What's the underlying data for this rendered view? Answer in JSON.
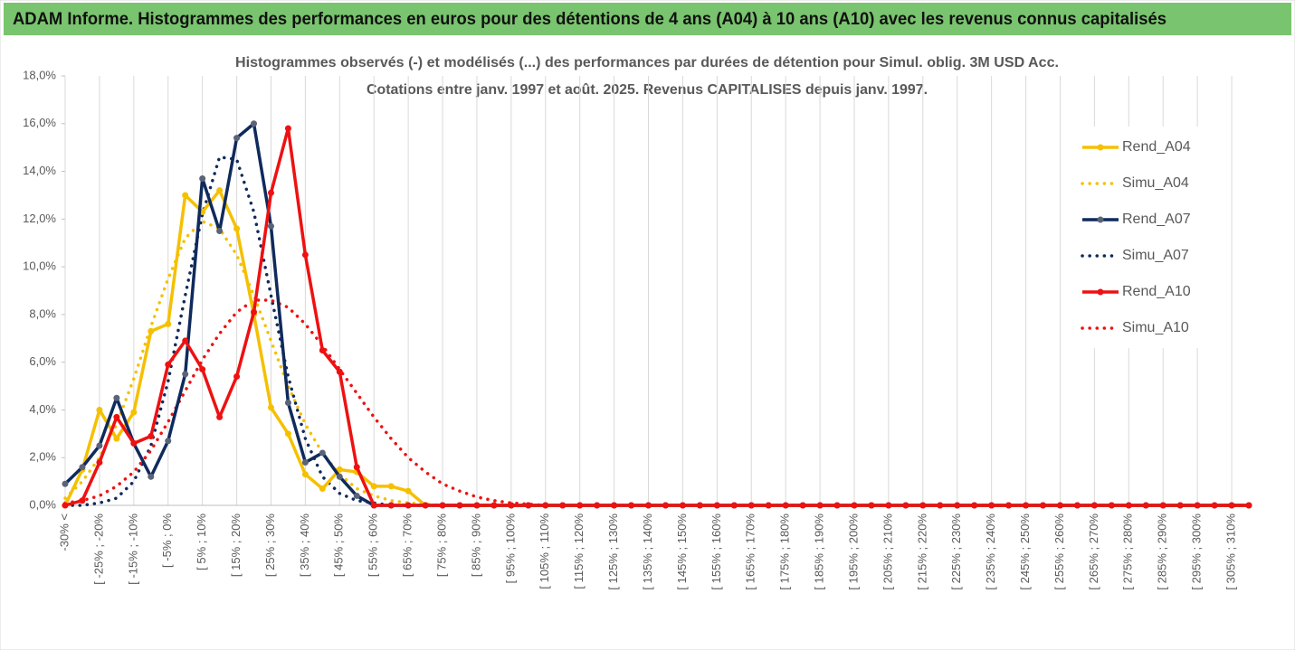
{
  "header": {
    "title": "ADAM Informe. Histogrammes des performances en euros pour des détentions de 4 ans (A04) à 10 ans (A10) avec les revenus connus capitalisés"
  },
  "chart_data": {
    "type": "line",
    "subtitle": [
      "Histogrammes observés (-) et modélisés (...) des performances par durées de détention pour Simul. oblig. 3M USD Acc.",
      "Cotations entre janv. 1997 et août. 2025. Revenus CAPITALISES depuis janv. 1997."
    ],
    "categories": [
      "-30% <",
      null,
      "[ -25% ; -20%",
      null,
      "[ -15% ; -10%",
      null,
      "[ -5% ; 0%",
      null,
      "[ 5% ; 10%",
      null,
      "[ 15% ; 20%",
      null,
      "[ 25% ; 30%",
      null,
      "[ 35% ; 40%",
      null,
      "[ 45% ; 50%",
      null,
      "[ 55% ; 60%",
      null,
      "[ 65% ; 70%",
      null,
      "[ 75% ; 80%",
      null,
      "[ 85% ; 90%",
      null,
      "[ 95% ; 100%",
      null,
      "[ 105% ; 110%",
      null,
      "[ 115% ; 120%",
      null,
      "[ 125% ; 130%",
      null,
      "[ 135% ; 140%",
      null,
      "[ 145% ; 150%",
      null,
      "[ 155% ; 160%",
      null,
      "[ 165% ; 170%",
      null,
      "[ 175% ; 180%",
      null,
      "[ 185% ; 190%",
      null,
      "[ 195% ; 200%",
      null,
      "[ 205% ; 210%",
      null,
      "[ 215% ; 220%",
      null,
      "[ 225% ; 230%",
      null,
      "[ 235% ; 240%",
      null,
      "[ 245% ; 250%",
      null,
      "[ 255% ; 260%",
      null,
      "[ 265% ; 270%",
      null,
      "[ 275% ; 280%",
      null,
      "[ 285% ; 290%",
      null,
      "[ 295% ; 300%",
      null,
      "[ 305% ; 310%",
      null
    ],
    "ylim": [
      0,
      18
    ],
    "yticks": [
      {
        "value": 0,
        "label": "0,0%"
      },
      {
        "value": 2,
        "label": "2,0%"
      },
      {
        "value": 4,
        "label": "4,0%"
      },
      {
        "value": 6,
        "label": "6,0%"
      },
      {
        "value": 8,
        "label": "8,0%"
      },
      {
        "value": 10,
        "label": "10,0%"
      },
      {
        "value": 12,
        "label": "12,0%"
      },
      {
        "value": 14,
        "label": "14,0%"
      },
      {
        "value": 16,
        "label": "16,0%"
      },
      {
        "value": 18,
        "label": "18,0%"
      }
    ],
    "grid": true,
    "legend": "right",
    "series": [
      {
        "name": "Rend_A04",
        "color": "#f5c000",
        "dash": "solid",
        "markers": true,
        "values": [
          0,
          1.5,
          4.0,
          2.8,
          3.9,
          7.3,
          7.6,
          13.0,
          12.3,
          13.2,
          11.6,
          8.0,
          4.1,
          3.0,
          1.3,
          0.7,
          1.5,
          1.4,
          0.8,
          0.8,
          0.6,
          0,
          0,
          0,
          0,
          0,
          0,
          0,
          0,
          0,
          0,
          0,
          0,
          0,
          0,
          0,
          0,
          0,
          0,
          0,
          0,
          0,
          0,
          0,
          0,
          0,
          0,
          0,
          0,
          0,
          0,
          0,
          0,
          0,
          0,
          0,
          0,
          0,
          0,
          0,
          0,
          0,
          0,
          0,
          0,
          0,
          0,
          0,
          0,
          0
        ]
      },
      {
        "name": "Simu_A04",
        "color": "#f5c000",
        "dash": "dotted",
        "markers": false,
        "values": [
          0.3,
          1.0,
          2.0,
          3.4,
          5.3,
          7.5,
          9.5,
          11.2,
          11.9,
          11.6,
          10.5,
          8.8,
          6.9,
          5.0,
          3.4,
          2.2,
          1.3,
          0.7,
          0.4,
          0.2,
          0.1,
          0.05,
          0,
          0,
          0,
          0,
          0,
          0,
          0,
          0,
          0,
          0,
          0,
          0,
          0,
          0,
          0,
          0,
          0,
          0,
          0,
          0,
          0,
          0,
          0,
          0,
          0,
          0,
          0,
          0,
          0,
          0,
          0,
          0,
          0,
          0,
          0,
          0,
          0,
          0,
          0,
          0,
          0,
          0,
          0,
          0,
          0,
          0,
          0,
          0
        ]
      },
      {
        "name": "Rend_A07",
        "color": "#0f2a5c",
        "dash": "solid",
        "markers": true,
        "values": [
          0.9,
          1.6,
          2.5,
          4.5,
          2.6,
          1.2,
          2.7,
          5.5,
          13.7,
          11.5,
          15.4,
          16.0,
          11.7,
          4.3,
          1.8,
          2.2,
          1.2,
          0.4,
          0,
          0,
          0,
          0,
          0,
          0,
          0,
          0,
          0,
          0,
          0,
          0,
          0,
          0,
          0,
          0,
          0,
          0,
          0,
          0,
          0,
          0,
          0,
          0,
          0,
          0,
          0,
          0,
          0,
          0,
          0,
          0,
          0,
          0,
          0,
          0,
          0,
          0,
          0,
          0,
          0,
          0,
          0,
          0,
          0,
          0,
          0,
          0,
          0,
          0,
          0,
          0
        ]
      },
      {
        "name": "Simu_A07",
        "color": "#0f2a5c",
        "dash": "dotted",
        "markers": false,
        "values": [
          0,
          0,
          0.1,
          0.3,
          1.0,
          2.5,
          5.2,
          8.8,
          12.2,
          14.6,
          14.5,
          12.3,
          8.8,
          5.4,
          2.8,
          1.2,
          0.5,
          0.2,
          0.1,
          0,
          0,
          0,
          0,
          0,
          0,
          0,
          0,
          0,
          0,
          0,
          0,
          0,
          0,
          0,
          0,
          0,
          0,
          0,
          0,
          0,
          0,
          0,
          0,
          0,
          0,
          0,
          0,
          0,
          0,
          0,
          0,
          0,
          0,
          0,
          0,
          0,
          0,
          0,
          0,
          0,
          0,
          0,
          0,
          0,
          0,
          0,
          0,
          0,
          0,
          0
        ]
      },
      {
        "name": "Rend_A10",
        "color": "#ee1111",
        "dash": "solid",
        "markers": true,
        "values": [
          0,
          0.2,
          1.8,
          3.7,
          2.6,
          2.9,
          5.9,
          6.9,
          5.7,
          3.7,
          5.4,
          8.1,
          13.1,
          15.8,
          10.5,
          6.5,
          5.6,
          1.6,
          0,
          0,
          0,
          0,
          0,
          0,
          0,
          0,
          0,
          0,
          0,
          0,
          0,
          0,
          0,
          0,
          0,
          0,
          0,
          0,
          0,
          0,
          0,
          0,
          0,
          0,
          0,
          0,
          0,
          0,
          0,
          0,
          0,
          0,
          0,
          0,
          0,
          0,
          0,
          0,
          0,
          0,
          0,
          0,
          0,
          0,
          0,
          0,
          0,
          0,
          0,
          0
        ]
      },
      {
        "name": "Simu_A10",
        "color": "#ee1111",
        "dash": "dotted",
        "markers": false,
        "values": [
          0.1,
          0.2,
          0.4,
          0.8,
          1.4,
          2.3,
          3.5,
          4.8,
          6.1,
          7.2,
          8.1,
          8.6,
          8.6,
          8.3,
          7.6,
          6.7,
          5.7,
          4.7,
          3.7,
          2.8,
          2.0,
          1.4,
          0.9,
          0.6,
          0.35,
          0.2,
          0.1,
          0.05,
          0,
          0,
          0,
          0,
          0,
          0,
          0,
          0,
          0,
          0,
          0,
          0,
          0,
          0,
          0,
          0,
          0,
          0,
          0,
          0,
          0,
          0,
          0,
          0,
          0,
          0,
          0,
          0,
          0,
          0,
          0,
          0,
          0,
          0,
          0,
          0,
          0,
          0,
          0,
          0,
          0,
          0
        ]
      }
    ]
  }
}
